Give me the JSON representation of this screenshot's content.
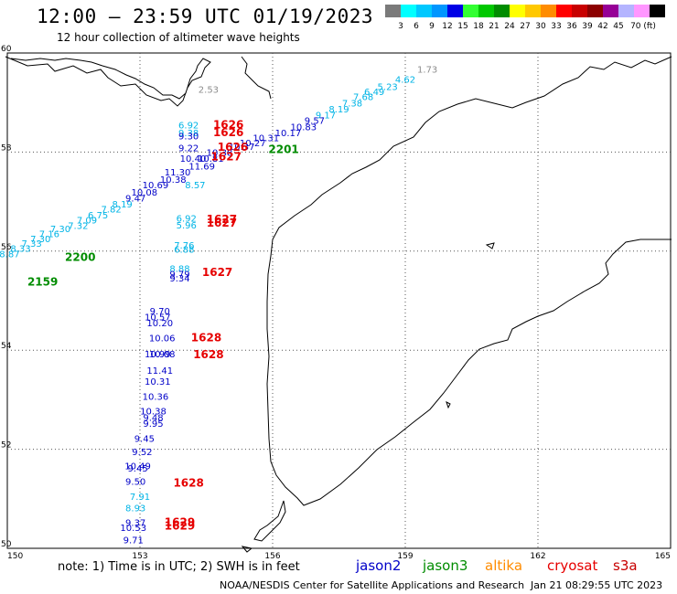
{
  "header": {
    "title": "12:00 – 23:59 UTC 01/19/2023",
    "subtitle": "12 hour collection of altimeter wave heights"
  },
  "colorbar": {
    "colors": [
      "#7a7a7a",
      "#00ffff",
      "#00c8ff",
      "#0096ff",
      "#0000e6",
      "#32ff32",
      "#00c800",
      "#008c00",
      "#ffff00",
      "#ffc800",
      "#ff8c00",
      "#ff0000",
      "#c80000",
      "#8c0000",
      "#960096",
      "#b4b4ff",
      "#ff96ff",
      "#000000"
    ],
    "ticks": [
      "3",
      "6",
      "9",
      "12",
      "15",
      "18",
      "21",
      "24",
      "27",
      "30",
      "33",
      "36",
      "39",
      "42",
      "45",
      "70 (ft)"
    ]
  },
  "map": {
    "lat_labels": [
      "60",
      "58",
      "56",
      "54",
      "52",
      "50"
    ],
    "lon_labels": [
      "150",
      "153",
      "156",
      "159",
      "162",
      "165"
    ],
    "text_colors": {
      "gray": "#8c8c8c",
      "cyan": "#00b4e6",
      "blue": "#0000c8",
      "green": "#008c00",
      "red": "#e60000"
    },
    "wave_labels": [
      {
        "t": "1.73",
        "lon": 159.5,
        "lat": 59.6,
        "c": "gray"
      },
      {
        "t": "4.62",
        "lon": 159.0,
        "lat": 59.4,
        "c": "cyan"
      },
      {
        "t": "5.23",
        "lon": 158.6,
        "lat": 59.25,
        "c": "cyan"
      },
      {
        "t": "6.49",
        "lon": 158.3,
        "lat": 59.15,
        "c": "cyan"
      },
      {
        "t": "7.68",
        "lon": 158.05,
        "lat": 59.05,
        "c": "cyan"
      },
      {
        "t": "7.38",
        "lon": 157.8,
        "lat": 58.92,
        "c": "cyan"
      },
      {
        "t": "8.19",
        "lon": 157.5,
        "lat": 58.8,
        "c": "cyan"
      },
      {
        "t": "9.17",
        "lon": 157.2,
        "lat": 58.68,
        "c": "cyan"
      },
      {
        "t": "9.57",
        "lon": 156.95,
        "lat": 58.57,
        "c": "blue"
      },
      {
        "t": "10.83",
        "lon": 156.7,
        "lat": 58.44,
        "c": "blue"
      },
      {
        "t": "10.17",
        "lon": 156.35,
        "lat": 58.32,
        "c": "blue"
      },
      {
        "t": "10.31",
        "lon": 155.85,
        "lat": 58.22,
        "c": "blue"
      },
      {
        "t": "10.27",
        "lon": 155.55,
        "lat": 58.12,
        "c": "blue"
      },
      {
        "t": "10.37",
        "lon": 155.3,
        "lat": 58.04,
        "c": "blue"
      },
      {
        "t": "10.38",
        "lon": 154.8,
        "lat": 57.92,
        "c": "blue"
      },
      {
        "t": "10.40",
        "lon": 154.2,
        "lat": 57.8,
        "c": "blue"
      },
      {
        "t": "10.81",
        "lon": 154.6,
        "lat": 57.8,
        "c": "blue"
      },
      {
        "t": "11.69",
        "lon": 154.4,
        "lat": 57.65,
        "c": "blue"
      },
      {
        "t": "11.30",
        "lon": 153.85,
        "lat": 57.53,
        "c": "blue"
      },
      {
        "t": "10.38",
        "lon": 153.75,
        "lat": 57.38,
        "c": "blue"
      },
      {
        "t": "8.57",
        "lon": 154.25,
        "lat": 57.27,
        "c": "cyan"
      },
      {
        "t": "10.69",
        "lon": 153.35,
        "lat": 57.27,
        "c": "blue"
      },
      {
        "t": "10.08",
        "lon": 153.1,
        "lat": 57.12,
        "c": "blue"
      },
      {
        "t": "9.47",
        "lon": 152.9,
        "lat": 57.0,
        "c": "blue"
      },
      {
        "t": "8.19",
        "lon": 152.6,
        "lat": 56.88,
        "c": "cyan"
      },
      {
        "t": "7.82",
        "lon": 152.35,
        "lat": 56.78,
        "c": "cyan"
      },
      {
        "t": "6.75",
        "lon": 152.05,
        "lat": 56.66,
        "c": "cyan"
      },
      {
        "t": "7.09",
        "lon": 151.8,
        "lat": 56.56,
        "c": "cyan"
      },
      {
        "t": "7.32",
        "lon": 151.6,
        "lat": 56.45,
        "c": "cyan"
      },
      {
        "t": "7.30",
        "lon": 151.2,
        "lat": 56.38,
        "c": "cyan"
      },
      {
        "t": "7.16",
        "lon": 150.95,
        "lat": 56.28,
        "c": "cyan"
      },
      {
        "t": "7.30",
        "lon": 150.75,
        "lat": 56.18,
        "c": "cyan"
      },
      {
        "t": "7.33",
        "lon": 150.55,
        "lat": 56.09,
        "c": "cyan"
      },
      {
        "t": "8.33",
        "lon": 150.3,
        "lat": 55.99,
        "c": "cyan"
      },
      {
        "t": "8.87",
        "lon": 150.05,
        "lat": 55.88,
        "c": "cyan"
      },
      {
        "t": "6.92",
        "lon": 154.1,
        "lat": 58.48,
        "c": "cyan"
      },
      {
        "t": "9.38",
        "lon": 154.1,
        "lat": 58.32,
        "c": "cyan"
      },
      {
        "t": "9.30",
        "lon": 154.1,
        "lat": 58.26,
        "c": "blue"
      },
      {
        "t": "9.22",
        "lon": 154.1,
        "lat": 58.02,
        "c": "blue"
      },
      {
        "t": "6.92",
        "lon": 154.05,
        "lat": 56.6,
        "c": "cyan"
      },
      {
        "t": "5.96",
        "lon": 154.05,
        "lat": 56.46,
        "c": "cyan"
      },
      {
        "t": "7.76",
        "lon": 154.0,
        "lat": 56.05,
        "c": "cyan"
      },
      {
        "t": "6.88",
        "lon": 154.0,
        "lat": 55.97,
        "c": "cyan"
      },
      {
        "t": "8.88",
        "lon": 153.9,
        "lat": 55.58,
        "c": "cyan"
      },
      {
        "t": "9.79",
        "lon": 153.9,
        "lat": 55.47,
        "c": "blue"
      },
      {
        "t": "9.34",
        "lon": 153.9,
        "lat": 55.39,
        "c": "blue"
      },
      {
        "t": "9.70",
        "lon": 153.45,
        "lat": 54.72,
        "c": "blue"
      },
      {
        "t": "10.57",
        "lon": 153.4,
        "lat": 54.6,
        "c": "blue"
      },
      {
        "t": "10.20",
        "lon": 153.45,
        "lat": 54.48,
        "c": "blue"
      },
      {
        "t": "10.06",
        "lon": 153.5,
        "lat": 54.18,
        "c": "blue"
      },
      {
        "t": "10.99",
        "lon": 153.4,
        "lat": 53.86,
        "c": "blue"
      },
      {
        "t": "10.08",
        "lon": 153.5,
        "lat": 53.86,
        "c": "blue"
      },
      {
        "t": "11.41",
        "lon": 153.45,
        "lat": 53.52,
        "c": "blue"
      },
      {
        "t": "10.31",
        "lon": 153.4,
        "lat": 53.3,
        "c": "blue"
      },
      {
        "t": "10.36",
        "lon": 153.35,
        "lat": 53.0,
        "c": "blue"
      },
      {
        "t": "10.38",
        "lon": 153.3,
        "lat": 52.7,
        "c": "blue"
      },
      {
        "t": "9.48",
        "lon": 153.3,
        "lat": 52.57,
        "c": "blue"
      },
      {
        "t": "9.95",
        "lon": 153.3,
        "lat": 52.45,
        "c": "blue"
      },
      {
        "t": "9.45",
        "lon": 153.1,
        "lat": 52.15,
        "c": "blue"
      },
      {
        "t": "9.52",
        "lon": 153.05,
        "lat": 51.88,
        "c": "blue"
      },
      {
        "t": "10.49",
        "lon": 152.95,
        "lat": 51.6,
        "c": "blue"
      },
      {
        "t": "9.45",
        "lon": 152.95,
        "lat": 51.55,
        "c": "blue"
      },
      {
        "t": "9.50",
        "lon": 152.9,
        "lat": 51.28,
        "c": "blue"
      },
      {
        "t": "7.91",
        "lon": 153.0,
        "lat": 50.98,
        "c": "cyan"
      },
      {
        "t": "8.93",
        "lon": 152.9,
        "lat": 50.75,
        "c": "cyan"
      },
      {
        "t": "9.37",
        "lon": 152.9,
        "lat": 50.45,
        "c": "blue"
      },
      {
        "t": "10.53",
        "lon": 152.85,
        "lat": 50.35,
        "c": "blue"
      },
      {
        "t": "9.71",
        "lon": 152.85,
        "lat": 50.1,
        "c": "blue"
      },
      {
        "t": "2.53",
        "lon": 154.55,
        "lat": 59.2,
        "c": "gray"
      }
    ],
    "time_labels": [
      {
        "t": "1626",
        "lon": 155.0,
        "lat": 58.48,
        "c": "red"
      },
      {
        "t": "1626",
        "lon": 155.0,
        "lat": 58.32,
        "c": "red"
      },
      {
        "t": "1626",
        "lon": 155.1,
        "lat": 58.03,
        "c": "red"
      },
      {
        "t": "1627",
        "lon": 154.95,
        "lat": 57.83,
        "c": "red"
      },
      {
        "t": "2201",
        "lon": 156.25,
        "lat": 57.98,
        "c": "green"
      },
      {
        "t": "1627",
        "lon": 154.85,
        "lat": 56.57,
        "c": "red"
      },
      {
        "t": "1627",
        "lon": 154.85,
        "lat": 56.49,
        "c": "red"
      },
      {
        "t": "2200",
        "lon": 151.65,
        "lat": 55.8,
        "c": "green"
      },
      {
        "t": "1627",
        "lon": 154.75,
        "lat": 55.5,
        "c": "red"
      },
      {
        "t": "2159",
        "lon": 150.8,
        "lat": 55.3,
        "c": "green"
      },
      {
        "t": "1628",
        "lon": 154.5,
        "lat": 54.18,
        "c": "red"
      },
      {
        "t": "1628",
        "lon": 154.55,
        "lat": 53.84,
        "c": "red"
      },
      {
        "t": "1628",
        "lon": 154.1,
        "lat": 51.25,
        "c": "red"
      },
      {
        "t": "1629",
        "lon": 153.9,
        "lat": 50.45,
        "c": "red"
      },
      {
        "t": "1629",
        "lon": 153.9,
        "lat": 50.38,
        "c": "red"
      }
    ]
  },
  "footer": {
    "note": "note: 1) Time is in UTC; 2) SWH is in feet",
    "legend": [
      {
        "label": "jason2",
        "color": "#0000c8"
      },
      {
        "label": "jason3",
        "color": "#008c00"
      },
      {
        "label": "altika",
        "color": "#ff8c00"
      },
      {
        "label": "cryosat",
        "color": "#e60000"
      },
      {
        "label": "s3a",
        "color": "#c80000"
      }
    ],
    "credit": "NOAA/NESDIS Center for Satellite Applications and Research",
    "timestamp": "Jan 21 08:29:55 UTC 2023"
  }
}
